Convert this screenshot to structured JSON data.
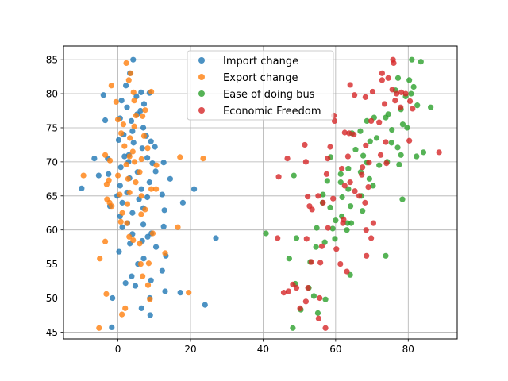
{
  "chart_data": {
    "type": "scatter",
    "title": "",
    "xlabel": "",
    "ylabel": "",
    "xlim": [
      -15,
      93.5
    ],
    "ylim": [
      44,
      87
    ],
    "xticks": [
      0,
      20,
      40,
      60,
      80
    ],
    "yticks": [
      45,
      50,
      55,
      60,
      65,
      70,
      75,
      80,
      85
    ],
    "xtick_labels": [
      "0",
      "20",
      "40",
      "60",
      "80"
    ],
    "ytick_labels": [
      "45",
      "50",
      "55",
      "60",
      "65",
      "70",
      "75",
      "80",
      "85"
    ],
    "grid": true,
    "legend_position": "top-center",
    "series": [
      {
        "name": "Import change",
        "color": "#1f77b4",
        "points": [
          [
            4.2,
            85.0
          ],
          [
            3.3,
            83.0
          ],
          [
            2.2,
            81.2
          ],
          [
            6.4,
            80.2
          ],
          [
            8.7,
            80.1
          ],
          [
            5.1,
            79.6
          ],
          [
            -4.0,
            79.8
          ],
          [
            1.0,
            79.0
          ],
          [
            7.2,
            78.5
          ],
          [
            2.5,
            78.0
          ],
          [
            6.2,
            77.5
          ],
          [
            5.3,
            77.0
          ],
          [
            0.6,
            76.4
          ],
          [
            3.7,
            76.0
          ],
          [
            -3.5,
            76.1
          ],
          [
            7.0,
            75.0
          ],
          [
            4.0,
            74.5
          ],
          [
            1.6,
            74.0
          ],
          [
            7.8,
            73.8
          ],
          [
            9.1,
            73.0
          ],
          [
            0.2,
            73.2
          ],
          [
            4.3,
            72.8
          ],
          [
            10.2,
            72.2
          ],
          [
            6.7,
            72.0
          ],
          [
            3.0,
            71.0
          ],
          [
            1.8,
            70.8
          ],
          [
            -2.8,
            70.5
          ],
          [
            8.1,
            70.6
          ],
          [
            -6.5,
            70.5
          ],
          [
            12.6,
            69.9
          ],
          [
            2.9,
            70.0
          ],
          [
            9.5,
            69.8
          ],
          [
            0.8,
            69.2
          ],
          [
            5.4,
            68.5
          ],
          [
            10.4,
            68.6
          ],
          [
            -2.6,
            68.2
          ],
          [
            -5.3,
            68.0
          ],
          [
            14.4,
            67.5
          ],
          [
            3.2,
            67.6
          ],
          [
            8.7,
            67.0
          ],
          [
            0.6,
            66.5
          ],
          [
            21.0,
            66.0
          ],
          [
            -10.0,
            66.1
          ],
          [
            6.5,
            66.0
          ],
          [
            2.5,
            65.5
          ],
          [
            -0.2,
            65.0
          ],
          [
            8.1,
            64.8
          ],
          [
            12.2,
            65.2
          ],
          [
            5.8,
            64.5
          ],
          [
            1.2,
            64.0
          ],
          [
            17.9,
            64.0
          ],
          [
            -2.2,
            63.5
          ],
          [
            7.0,
            63.2
          ],
          [
            12.8,
            62.9
          ],
          [
            4.0,
            62.5
          ],
          [
            0.6,
            62.0
          ],
          [
            2.6,
            61.0
          ],
          [
            7.0,
            60.8
          ],
          [
            12.6,
            60.5
          ],
          [
            1.2,
            60.4
          ],
          [
            27.0,
            58.8
          ],
          [
            9.2,
            59.5
          ],
          [
            4.0,
            59.4
          ],
          [
            8.2,
            59.0
          ],
          [
            6.7,
            58.4
          ],
          [
            3.3,
            58.0
          ],
          [
            10.5,
            57.5
          ],
          [
            13.2,
            56.2
          ],
          [
            0.3,
            56.8
          ],
          [
            7.1,
            55.8
          ],
          [
            5.5,
            55.0
          ],
          [
            12.2,
            54.0
          ],
          [
            3.8,
            53.2
          ],
          [
            9.1,
            52.6
          ],
          [
            2.1,
            52.2
          ],
          [
            4.8,
            51.8
          ],
          [
            13.0,
            51.0
          ],
          [
            17.2,
            50.8
          ],
          [
            -1.5,
            50.0
          ],
          [
            8.8,
            50.0
          ],
          [
            24.0,
            49.0
          ],
          [
            6.5,
            48.5
          ],
          [
            8.9,
            47.5
          ],
          [
            -1.7,
            45.7
          ]
        ]
      },
      {
        "name": "Export change",
        "color": "#ff7f0e",
        "points": [
          [
            2.3,
            84.5
          ],
          [
            3.5,
            83.0
          ],
          [
            3.0,
            82.0
          ],
          [
            -1.8,
            81.2
          ],
          [
            4.3,
            80.2
          ],
          [
            9.2,
            80.3
          ],
          [
            4.5,
            79.0
          ],
          [
            -0.5,
            78.8
          ],
          [
            7.5,
            77.6
          ],
          [
            5.0,
            76.8
          ],
          [
            6.8,
            76.7
          ],
          [
            0.0,
            76.2
          ],
          [
            1.5,
            75.5
          ],
          [
            4.5,
            75.2
          ],
          [
            0.9,
            74.2
          ],
          [
            7.2,
            73.8
          ],
          [
            3.3,
            73.5
          ],
          [
            1.8,
            72.3
          ],
          [
            8.2,
            72.0
          ],
          [
            4.1,
            71.5
          ],
          [
            -3.5,
            71.0
          ],
          [
            3.2,
            70.8
          ],
          [
            17.1,
            70.7
          ],
          [
            23.5,
            70.5
          ],
          [
            6.5,
            70.4
          ],
          [
            -2.2,
            70.2
          ],
          [
            4.6,
            70.0
          ],
          [
            2.3,
            69.6
          ],
          [
            10.6,
            69.5
          ],
          [
            6.0,
            68.5
          ],
          [
            -9.5,
            68.0
          ],
          [
            0.0,
            68.0
          ],
          [
            2.8,
            67.5
          ],
          [
            -2.5,
            67.3
          ],
          [
            4.9,
            67.0
          ],
          [
            -3.1,
            66.7
          ],
          [
            9.2,
            66.0
          ],
          [
            10.5,
            66.0
          ],
          [
            3.2,
            65.5
          ],
          [
            0.5,
            65.2
          ],
          [
            6.5,
            65.0
          ],
          [
            -3.0,
            64.5
          ],
          [
            -2.3,
            64.0
          ],
          [
            2.6,
            63.8
          ],
          [
            -1.7,
            63.5
          ],
          [
            7.5,
            63.0
          ],
          [
            1.2,
            62.5
          ],
          [
            6.4,
            62.3
          ],
          [
            0.8,
            61.2
          ],
          [
            2.5,
            61.0
          ],
          [
            16.5,
            60.4
          ],
          [
            3.1,
            59.0
          ],
          [
            9.6,
            59.5
          ],
          [
            -3.5,
            58.3
          ],
          [
            4.2,
            58.5
          ],
          [
            6.0,
            58.0
          ],
          [
            13.0,
            56.6
          ],
          [
            -5.0,
            55.8
          ],
          [
            8.5,
            55.1
          ],
          [
            6.3,
            55.0
          ],
          [
            6.8,
            53.2
          ],
          [
            8.3,
            51.9
          ],
          [
            -3.2,
            50.6
          ],
          [
            19.5,
            50.8
          ],
          [
            8.8,
            49.8
          ],
          [
            2.0,
            48.5
          ],
          [
            1.1,
            47.6
          ],
          [
            -5.2,
            45.6
          ]
        ]
      },
      {
        "name": "Ease of doing bus",
        "color": "#2ca02c",
        "points": [
          [
            81.0,
            85.0
          ],
          [
            83.5,
            84.7
          ],
          [
            77.2,
            82.3
          ],
          [
            80.3,
            82.0
          ],
          [
            81.5,
            81.0
          ],
          [
            76.5,
            80.5
          ],
          [
            80.8,
            80.0
          ],
          [
            79.3,
            79.6
          ],
          [
            82.5,
            78.3
          ],
          [
            86.2,
            78.0
          ],
          [
            78.0,
            77.7
          ],
          [
            74.5,
            77.0
          ],
          [
            73.8,
            76.5
          ],
          [
            70.6,
            76.5
          ],
          [
            78.5,
            75.5
          ],
          [
            68.6,
            76.0
          ],
          [
            79.7,
            75.0
          ],
          [
            75.5,
            74.7
          ],
          [
            66.8,
            74.5
          ],
          [
            64.5,
            74.2
          ],
          [
            71.3,
            73.5
          ],
          [
            69.5,
            73.0
          ],
          [
            75.4,
            72.8
          ],
          [
            77.1,
            72.1
          ],
          [
            65.5,
            71.8
          ],
          [
            84.2,
            71.4
          ],
          [
            78.0,
            71.0
          ],
          [
            67.6,
            70.9
          ],
          [
            82.3,
            70.8
          ],
          [
            58.6,
            70.7
          ],
          [
            74.2,
            70.0
          ],
          [
            68.6,
            69.9
          ],
          [
            77.5,
            69.6
          ],
          [
            72.0,
            69.5
          ],
          [
            63.5,
            69.0
          ],
          [
            66.9,
            68.5
          ],
          [
            61.4,
            68.2
          ],
          [
            48.5,
            68.0
          ],
          [
            69.3,
            67.5
          ],
          [
            57.7,
            67.2
          ],
          [
            61.4,
            67.0
          ],
          [
            70.3,
            66.5
          ],
          [
            63.5,
            66.0
          ],
          [
            56.5,
            65.2
          ],
          [
            67.1,
            65.0
          ],
          [
            61.8,
            64.8
          ],
          [
            78.4,
            64.5
          ],
          [
            56.4,
            64.0
          ],
          [
            64.1,
            63.5
          ],
          [
            58.5,
            63.3
          ],
          [
            67.4,
            62.8
          ],
          [
            61.7,
            62.0
          ],
          [
            60.0,
            61.4
          ],
          [
            63.3,
            61.0
          ],
          [
            64.3,
            61.0
          ],
          [
            54.8,
            60.3
          ],
          [
            59.2,
            60.2
          ],
          [
            63.1,
            60.0
          ],
          [
            40.8,
            59.5
          ],
          [
            49.2,
            58.8
          ],
          [
            59.8,
            58.7
          ],
          [
            57.0,
            58.2
          ],
          [
            54.6,
            57.5
          ],
          [
            73.8,
            56.2
          ],
          [
            47.2,
            55.8
          ],
          [
            53.0,
            55.3
          ],
          [
            64.0,
            53.4
          ],
          [
            48.9,
            52.1
          ],
          [
            52.6,
            51.5
          ],
          [
            54.0,
            50.3
          ],
          [
            57.2,
            49.8
          ],
          [
            50.4,
            48.3
          ],
          [
            55.1,
            47.8
          ],
          [
            48.2,
            45.6
          ]
        ]
      },
      {
        "name": "Economic Freedom",
        "color": "#d62728",
        "points": [
          [
            75.8,
            85.0
          ],
          [
            76.0,
            84.5
          ],
          [
            72.8,
            83.0
          ],
          [
            74.5,
            82.3
          ],
          [
            72.8,
            82.0
          ],
          [
            64.0,
            81.3
          ],
          [
            75.6,
            80.6
          ],
          [
            70.2,
            80.3
          ],
          [
            78.1,
            80.2
          ],
          [
            76.8,
            80.0
          ],
          [
            65.2,
            79.8
          ],
          [
            79.3,
            80.0
          ],
          [
            68.2,
            79.5
          ],
          [
            76.4,
            79.0
          ],
          [
            80.5,
            78.9
          ],
          [
            73.5,
            78.5
          ],
          [
            77.9,
            78.0
          ],
          [
            81.2,
            77.8
          ],
          [
            59.5,
            76.8
          ],
          [
            59.7,
            76.0
          ],
          [
            69.8,
            76.0
          ],
          [
            72.0,
            75.8
          ],
          [
            63.7,
            74.2
          ],
          [
            62.5,
            74.3
          ],
          [
            65.0,
            74.0
          ],
          [
            80.3,
            73.1
          ],
          [
            51.5,
            72.5
          ],
          [
            73.8,
            72.9
          ],
          [
            68.3,
            72.4
          ],
          [
            58.5,
            72.2
          ],
          [
            88.5,
            71.4
          ],
          [
            72.4,
            71.0
          ],
          [
            63.4,
            70.8
          ],
          [
            46.7,
            70.5
          ],
          [
            57.8,
            70.5
          ],
          [
            51.8,
            70.0
          ],
          [
            69.2,
            69.9
          ],
          [
            74.0,
            69.8
          ],
          [
            67.4,
            69.2
          ],
          [
            61.7,
            69.0
          ],
          [
            57.5,
            68.2
          ],
          [
            44.3,
            67.8
          ],
          [
            67.2,
            68.1
          ],
          [
            64.0,
            67.0
          ],
          [
            62.5,
            66.5
          ],
          [
            69.0,
            66.3
          ],
          [
            65.3,
            65.7
          ],
          [
            66.5,
            65.0
          ],
          [
            55.2,
            65.0
          ],
          [
            52.3,
            64.9
          ],
          [
            59.3,
            64.6
          ],
          [
            56.5,
            64.0
          ],
          [
            68.1,
            64.0
          ],
          [
            52.8,
            63.5
          ],
          [
            53.5,
            63.0
          ],
          [
            62.2,
            61.5
          ],
          [
            62.0,
            61.0
          ],
          [
            70.4,
            61.0
          ],
          [
            57.9,
            60.3
          ],
          [
            68.4,
            60.0
          ],
          [
            44.0,
            58.8
          ],
          [
            52.0,
            58.7
          ],
          [
            69.8,
            58.8
          ],
          [
            56.2,
            57.6
          ],
          [
            60.2,
            57.2
          ],
          [
            68.5,
            56.2
          ],
          [
            55.8,
            55.2
          ],
          [
            53.3,
            55.3
          ],
          [
            61.3,
            55.0
          ],
          [
            63.1,
            53.9
          ],
          [
            48.2,
            52.0
          ],
          [
            52.4,
            51.5
          ],
          [
            49.2,
            51.5
          ],
          [
            47.0,
            51.0
          ],
          [
            45.7,
            50.8
          ],
          [
            55.6,
            50.0
          ],
          [
            51.8,
            49.5
          ],
          [
            50.2,
            48.5
          ],
          [
            55.3,
            47.0
          ],
          [
            57.2,
            45.6
          ]
        ]
      }
    ]
  }
}
